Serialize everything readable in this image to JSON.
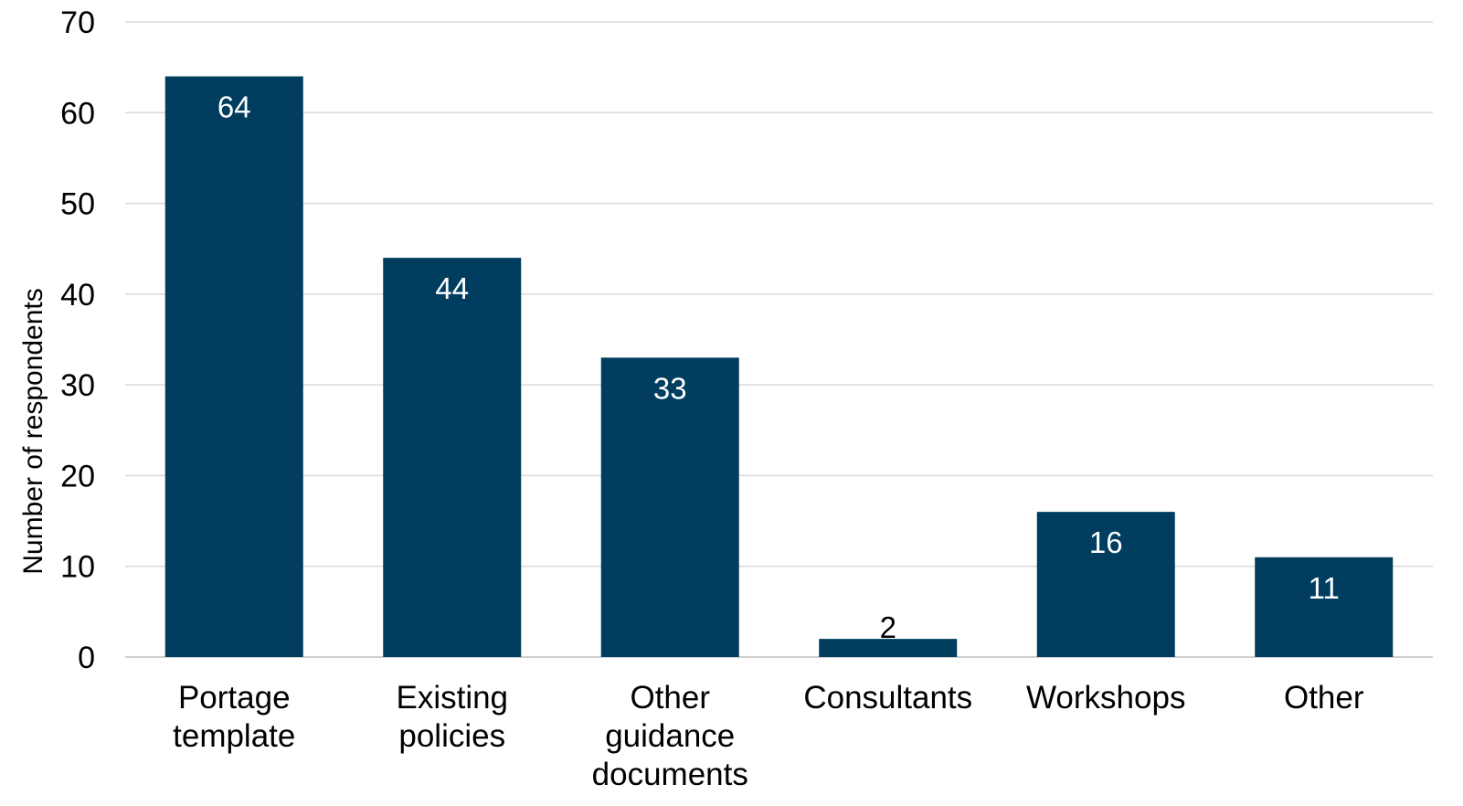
{
  "chart_data": {
    "type": "bar",
    "categories": [
      [
        "Portage",
        "template"
      ],
      [
        "Existing",
        "policies"
      ],
      [
        "Other",
        "guidance",
        "documents"
      ],
      [
        "Consultants"
      ],
      [
        "Workshops"
      ],
      [
        "Other"
      ]
    ],
    "values": [
      64,
      44,
      33,
      2,
      16,
      11
    ],
    "ylabel": "Number of respondents",
    "xlabel": "",
    "title": "",
    "ylim": [
      0,
      70
    ],
    "yticks": [
      0,
      10,
      20,
      30,
      40,
      50,
      60,
      70
    ],
    "grid": true,
    "legend": "none",
    "bar_color": "#003d5e",
    "grid_color": "#d9d9d9",
    "label_color_inside": "#ffffff",
    "label_color_outside": "#000000"
  }
}
